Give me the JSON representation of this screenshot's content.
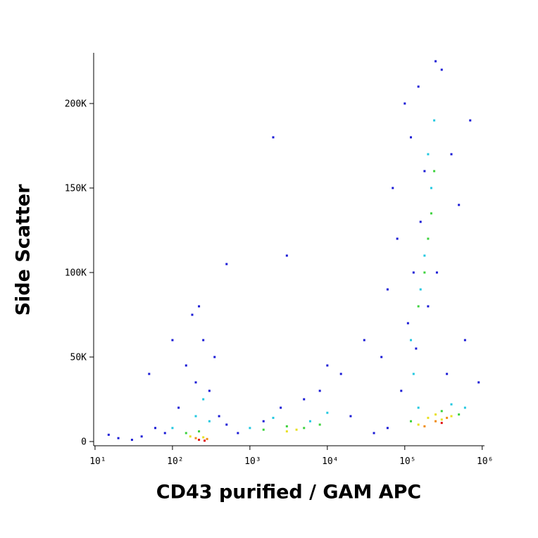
{
  "chart_data": {
    "type": "scatter",
    "xlabel": "CD43 purified / GAM APC",
    "ylabel": "Side Scatter",
    "xscale": "log",
    "xlim": [
      9.6,
      1070000
    ],
    "xticks": [
      {
        "value": 10,
        "label": "10¹"
      },
      {
        "value": 100,
        "label": "10²"
      },
      {
        "value": 1000,
        "label": "10³"
      },
      {
        "value": 10000,
        "label": "10⁴"
      },
      {
        "value": 100000,
        "label": "10⁵"
      },
      {
        "value": 1000000,
        "label": "10⁶"
      }
    ],
    "ylim": [
      -2500,
      230000
    ],
    "yticks": [
      0,
      {
        "value": 50000,
        "label": "50K"
      },
      {
        "value": 100000,
        "label": "100K"
      },
      {
        "value": 150000,
        "label": "150K"
      },
      {
        "value": 200000,
        "label": "200K"
      }
    ],
    "series": [
      {
        "color": "#1a1ad6",
        "x": [
          80,
          120,
          200,
          150,
          250,
          300,
          60,
          400,
          500,
          700,
          1500,
          2500,
          5000,
          8000,
          15000,
          20000,
          30000,
          50000,
          60000,
          70000,
          80000,
          90000,
          100000,
          120000,
          150000,
          300000,
          400000,
          500000,
          600000,
          130000,
          110000,
          200000,
          350000,
          250000,
          700000,
          20,
          30,
          40,
          100,
          180,
          2000,
          3000,
          10000,
          500,
          900000,
          40000,
          60000,
          15,
          220,
          160000,
          180000,
          140000,
          260000,
          50,
          350
        ],
        "y": [
          5000,
          20000,
          35000,
          45000,
          60000,
          30000,
          8000,
          15000,
          10000,
          5000,
          12000,
          20000,
          25000,
          30000,
          40000,
          15000,
          60000,
          50000,
          90000,
          150000,
          120000,
          30000,
          200000,
          180000,
          210000,
          220000,
          170000,
          140000,
          60000,
          100000,
          70000,
          80000,
          40000,
          225000,
          190000,
          2000,
          1000,
          3000,
          60000,
          75000,
          180000,
          110000,
          45000,
          105000,
          35000,
          5000,
          8000,
          4000,
          80000,
          130000,
          160000,
          55000,
          100000,
          40000,
          50000
        ]
      },
      {
        "color": "#22c8e0",
        "x": [
          100,
          200,
          300,
          1000,
          2000,
          6000,
          10000,
          150000,
          120000,
          180000,
          220000,
          200000,
          240000,
          160000,
          600000,
          130000,
          400000,
          250
        ],
        "y": [
          8000,
          15000,
          12000,
          8000,
          14000,
          12000,
          17000,
          20000,
          60000,
          110000,
          150000,
          170000,
          190000,
          90000,
          20000,
          40000,
          22000,
          25000
        ]
      },
      {
        "color": "#3cd23c",
        "x": [
          150,
          220,
          1500,
          3000,
          5000,
          8000,
          200000,
          220000,
          180000,
          240000,
          150000,
          300000,
          500000,
          120000
        ],
        "y": [
          5000,
          6000,
          7000,
          9000,
          8000,
          10000,
          120000,
          135000,
          100000,
          160000,
          80000,
          18000,
          16000,
          12000
        ]
      },
      {
        "color": "#e8e020",
        "x": [
          170,
          250,
          3000,
          4000,
          200000,
          300000,
          400000,
          150000,
          250000
        ],
        "y": [
          3000,
          2500,
          6000,
          7000,
          14000,
          13000,
          15000,
          10000,
          16000
        ]
      },
      {
        "color": "#f08c14",
        "x": [
          200,
          280,
          250000,
          350000,
          180000
        ],
        "y": [
          2000,
          1500,
          12000,
          14000,
          9000
        ]
      },
      {
        "color": "#e01414",
        "x": [
          220,
          260,
          300000
        ],
        "y": [
          1000,
          500,
          11000
        ]
      }
    ]
  }
}
